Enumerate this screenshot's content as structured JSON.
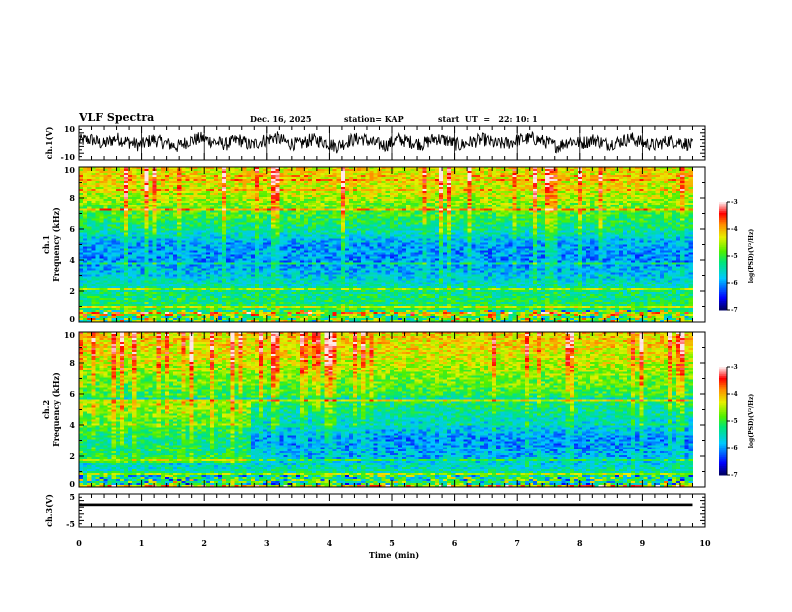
{
  "header": {
    "title": "VLF Spectra",
    "date": "Dec. 16, 2025",
    "station_label": "station= KAP",
    "start_label": "start  UT  =   22: 10: 1"
  },
  "chart_data": [
    {
      "type": "line",
      "name": "ch1-waveform",
      "ylabel": "ch.1(V)",
      "ylim": [
        -10,
        10
      ],
      "yticks": [
        "10",
        "-10"
      ],
      "xlim": [
        0,
        10
      ],
      "data_end_min": 9.8,
      "description": "Noisy oscillating voltage waveform, roughly -4 to +4 V with ~35 s quasi-periodic swings",
      "approx_series": [
        2,
        3,
        -1,
        4,
        1,
        -2,
        3,
        0,
        -3,
        2,
        4,
        1,
        -1,
        3,
        -2,
        2,
        5,
        0,
        -1,
        3,
        1,
        -3,
        2,
        4,
        0,
        -2,
        3,
        1,
        -1,
        4,
        2,
        -2,
        1,
        3,
        -1,
        0,
        3,
        4,
        1,
        -3,
        2,
        0,
        3,
        -1,
        1,
        4,
        0,
        -2,
        2,
        1,
        -2
      ]
    },
    {
      "type": "heatmap",
      "name": "ch1-spectrogram",
      "ylabel": "ch.1\nFrequency (kHz)",
      "ylim": [
        0,
        10
      ],
      "yticks": [
        "0",
        "2",
        "4",
        "6",
        "8",
        "10"
      ],
      "xlim": [
        0,
        10
      ],
      "data_end_min": 9.8,
      "colorbar": {
        "label": "log(PSD)(V²/Hz)",
        "range": [
          -7,
          -3
        ],
        "ticks": [
          "-3",
          "-4",
          "-5",
          "-6",
          "-7"
        ]
      },
      "frequency_profile_kHz": [
        0,
        1,
        2,
        3,
        4,
        5,
        6,
        7,
        8,
        9,
        10
      ],
      "logpsd_profile": [
        -4.8,
        -5.1,
        -5.3,
        -5.7,
        -6.0,
        -5.9,
        -5.3,
        -4.9,
        -4.5,
        -4.3,
        -4.2
      ]
    },
    {
      "type": "heatmap",
      "name": "ch2-spectrogram",
      "ylabel": "ch.2\nFrequency (kHz)",
      "ylim": [
        0,
        10
      ],
      "yticks": [
        "0",
        "2",
        "4",
        "6",
        "8",
        "10"
      ],
      "xlim": [
        0,
        10
      ],
      "data_end_min": 9.8,
      "colorbar": {
        "label": "log(PSD)(V²/Hz)",
        "range": [
          -7,
          -3
        ],
        "ticks": [
          "-3",
          "-4",
          "-5",
          "-6",
          "-7"
        ]
      },
      "frequency_profile_kHz": [
        0,
        1,
        2,
        3,
        4,
        5,
        6,
        7,
        8,
        9,
        10
      ],
      "logpsd_profile": [
        -5.0,
        -5.4,
        -5.8,
        -6.0,
        -5.6,
        -5.3,
        -5.0,
        -4.7,
        -4.4,
        -4.2,
        -4.1
      ],
      "change_at_min": 2.75
    },
    {
      "type": "line",
      "name": "ch3-waveform",
      "ylabel": "ch.3(V)",
      "ylim": [
        -5,
        5
      ],
      "yticks": [
        "5",
        "-5"
      ],
      "xlim": [
        0,
        10
      ],
      "data_end_min": 9.8,
      "approx_level_V": [
        1.3,
        2.1
      ],
      "xlabel": "Time  (min)",
      "xticks": [
        "0",
        "1",
        "2",
        "3",
        "4",
        "5",
        "6",
        "7",
        "8",
        "9",
        "10"
      ]
    }
  ]
}
